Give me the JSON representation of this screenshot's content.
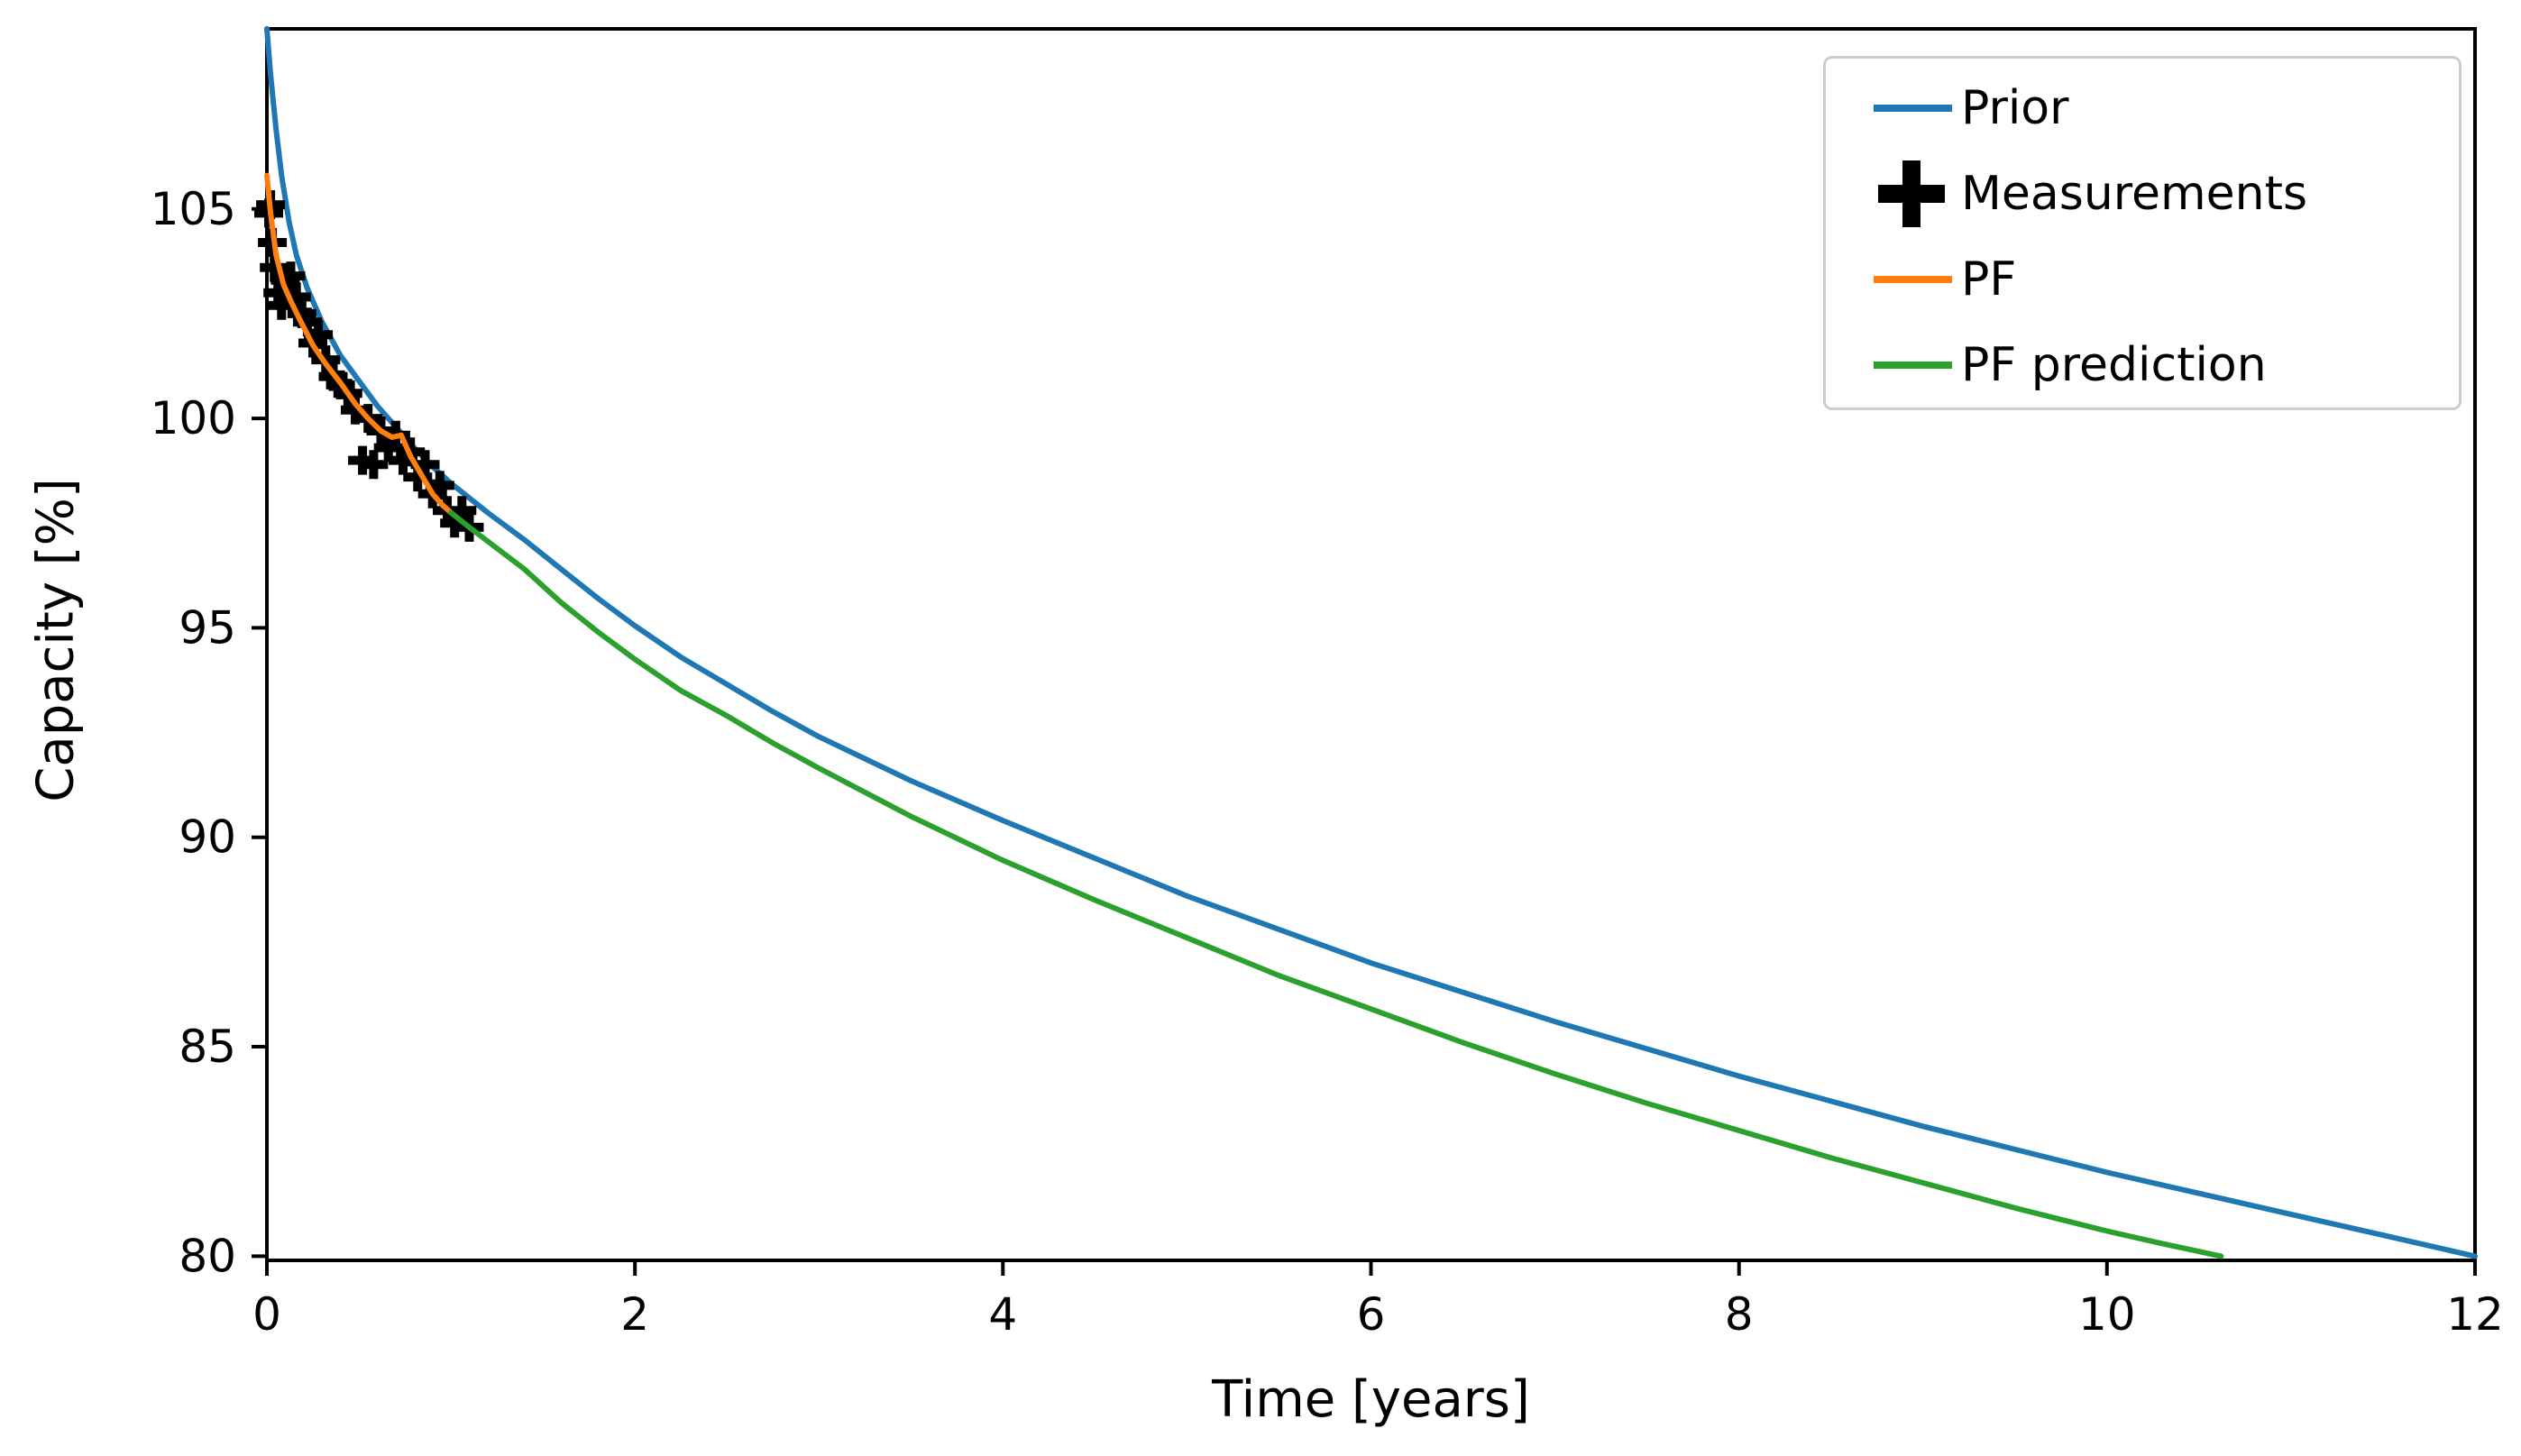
{
  "figure": {
    "background": "#ffffff"
  },
  "chart_data": {
    "type": "line",
    "title": "",
    "xlabel": "Time [years]",
    "ylabel": "Capacity [%]",
    "xlim": [
      0,
      12
    ],
    "ylim": [
      79.9,
      109.3
    ],
    "xticks": [
      0,
      2,
      4,
      6,
      8,
      10,
      12
    ],
    "yticks": [
      80,
      85,
      90,
      95,
      100,
      105
    ],
    "grid": false,
    "legend": {
      "position": "upper right",
      "border_color": "#cccccc"
    },
    "series": [
      {
        "name": "Prior",
        "type": "line",
        "color": "#1f77b4",
        "points": [
          [
            0,
            109.3
          ],
          [
            0.02,
            108.2
          ],
          [
            0.05,
            106.9
          ],
          [
            0.08,
            105.8
          ],
          [
            0.12,
            104.7
          ],
          [
            0.16,
            103.9
          ],
          [
            0.22,
            103.1
          ],
          [
            0.3,
            102.3
          ],
          [
            0.4,
            101.5
          ],
          [
            0.5,
            100.9
          ],
          [
            0.6,
            100.3
          ],
          [
            0.7,
            99.8
          ],
          [
            0.8,
            99.3
          ],
          [
            0.9,
            98.85
          ],
          [
            1.0,
            98.45
          ],
          [
            1.2,
            97.75
          ],
          [
            1.4,
            97.1
          ],
          [
            1.6,
            96.4
          ],
          [
            1.8,
            95.7
          ],
          [
            2.0,
            95.05
          ],
          [
            2.25,
            94.3
          ],
          [
            2.5,
            93.65
          ],
          [
            2.75,
            93.0
          ],
          [
            3.0,
            92.4
          ],
          [
            3.5,
            91.35
          ],
          [
            4.0,
            90.4
          ],
          [
            4.5,
            89.5
          ],
          [
            5.0,
            88.6
          ],
          [
            5.5,
            87.8
          ],
          [
            6.0,
            87.0
          ],
          [
            6.5,
            86.3
          ],
          [
            7.0,
            85.6
          ],
          [
            7.5,
            84.95
          ],
          [
            8.0,
            84.3
          ],
          [
            8.5,
            83.7
          ],
          [
            9.0,
            83.1
          ],
          [
            9.5,
            82.55
          ],
          [
            10.0,
            82.0
          ],
          [
            10.5,
            81.5
          ],
          [
            11.0,
            81.0
          ],
          [
            11.5,
            80.5
          ],
          [
            12.0,
            80.0
          ]
        ]
      },
      {
        "name": "Measurements",
        "type": "scatter",
        "marker": "plus",
        "color": "#000000",
        "points": [
          [
            0.01,
            104.9
          ],
          [
            0.02,
            105.1
          ],
          [
            0.03,
            104.2
          ],
          [
            0.04,
            103.6
          ],
          [
            0.06,
            103.0
          ],
          [
            0.08,
            102.7
          ],
          [
            0.1,
            103.3
          ],
          [
            0.13,
            103.4
          ],
          [
            0.16,
            102.9
          ],
          [
            0.19,
            102.5
          ],
          [
            0.22,
            102.3
          ],
          [
            0.25,
            101.8
          ],
          [
            0.28,
            102.0
          ],
          [
            0.32,
            101.4
          ],
          [
            0.36,
            101.0
          ],
          [
            0.4,
            100.8
          ],
          [
            0.44,
            100.6
          ],
          [
            0.48,
            100.2
          ],
          [
            0.52,
            99.0
          ],
          [
            0.55,
            100.0
          ],
          [
            0.58,
            98.9
          ],
          [
            0.62,
            99.7
          ],
          [
            0.66,
            99.3
          ],
          [
            0.7,
            99.6
          ],
          [
            0.74,
            99.0
          ],
          [
            0.78,
            99.2
          ],
          [
            0.82,
            98.6
          ],
          [
            0.86,
            98.9
          ],
          [
            0.9,
            98.2
          ],
          [
            0.94,
            98.4
          ],
          [
            0.98,
            97.8
          ],
          [
            1.02,
            97.5
          ],
          [
            1.06,
            97.8
          ],
          [
            1.1,
            97.4
          ]
        ]
      },
      {
        "name": "PF",
        "type": "line",
        "color": "#ff7f0e",
        "points": [
          [
            0,
            105.8
          ],
          [
            0.02,
            104.9
          ],
          [
            0.05,
            103.9
          ],
          [
            0.09,
            103.2
          ],
          [
            0.13,
            102.8
          ],
          [
            0.18,
            102.35
          ],
          [
            0.25,
            101.75
          ],
          [
            0.32,
            101.3
          ],
          [
            0.4,
            100.85
          ],
          [
            0.48,
            100.35
          ],
          [
            0.55,
            100.0
          ],
          [
            0.62,
            99.7
          ],
          [
            0.68,
            99.55
          ],
          [
            0.73,
            99.6
          ],
          [
            0.78,
            99.1
          ],
          [
            0.84,
            98.65
          ],
          [
            0.9,
            98.2
          ],
          [
            0.95,
            97.95
          ],
          [
            1.0,
            97.75
          ]
        ]
      },
      {
        "name": "PF prediction",
        "type": "line",
        "color": "#2ca02c",
        "points": [
          [
            1.0,
            97.75
          ],
          [
            1.1,
            97.4
          ],
          [
            1.25,
            96.9
          ],
          [
            1.4,
            96.4
          ],
          [
            1.6,
            95.6
          ],
          [
            1.8,
            94.9
          ],
          [
            2.0,
            94.25
          ],
          [
            2.25,
            93.5
          ],
          [
            2.5,
            92.9
          ],
          [
            2.75,
            92.25
          ],
          [
            3.0,
            91.65
          ],
          [
            3.5,
            90.5
          ],
          [
            4.0,
            89.45
          ],
          [
            4.5,
            88.5
          ],
          [
            5.0,
            87.6
          ],
          [
            5.5,
            86.7
          ],
          [
            6.0,
            85.9
          ],
          [
            6.5,
            85.1
          ],
          [
            7.0,
            84.35
          ],
          [
            7.5,
            83.65
          ],
          [
            8.0,
            83.0
          ],
          [
            8.5,
            82.35
          ],
          [
            9.0,
            81.75
          ],
          [
            9.5,
            81.15
          ],
          [
            10.0,
            80.6
          ],
          [
            10.3,
            80.3
          ],
          [
            10.62,
            80.0
          ]
        ]
      }
    ]
  }
}
